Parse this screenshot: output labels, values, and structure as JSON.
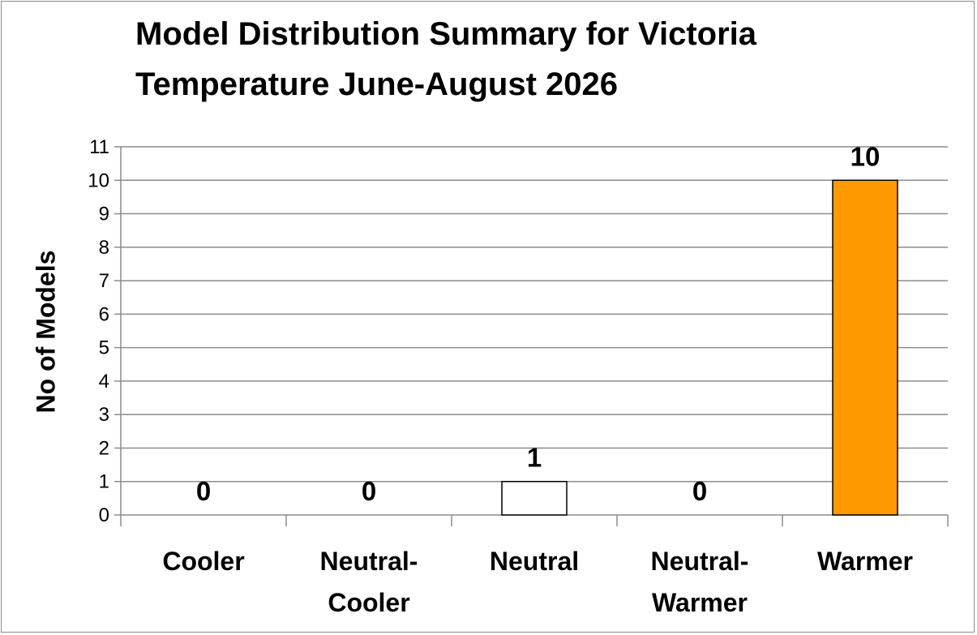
{
  "chart_data": {
    "type": "bar",
    "title_lines": [
      "Model Distribution Summary for Victoria",
      "Temperature June-August 2026"
    ],
    "xlabel": "",
    "ylabel": "No of Models",
    "categories": [
      "Cooler",
      "Neutral-Cooler",
      "Neutral",
      "Neutral-Warmer",
      "Warmer"
    ],
    "category_label_lines": [
      [
        "Cooler"
      ],
      [
        "Neutral-",
        "Cooler"
      ],
      [
        "Neutral"
      ],
      [
        "Neutral-",
        "Warmer"
      ],
      [
        "Warmer"
      ]
    ],
    "values": [
      0,
      0,
      1,
      0,
      10
    ],
    "data_labels": [
      "0",
      "0",
      "1",
      "0",
      "10"
    ],
    "bar_colors": [
      "#ffffff",
      "#ffffff",
      "#ffffff",
      "#ffffff",
      "#ff9900"
    ],
    "ylim": [
      0,
      11
    ],
    "yticks": [
      0,
      1,
      2,
      3,
      4,
      5,
      6,
      7,
      8,
      9,
      10,
      11
    ],
    "grid": true,
    "legend": "none"
  }
}
